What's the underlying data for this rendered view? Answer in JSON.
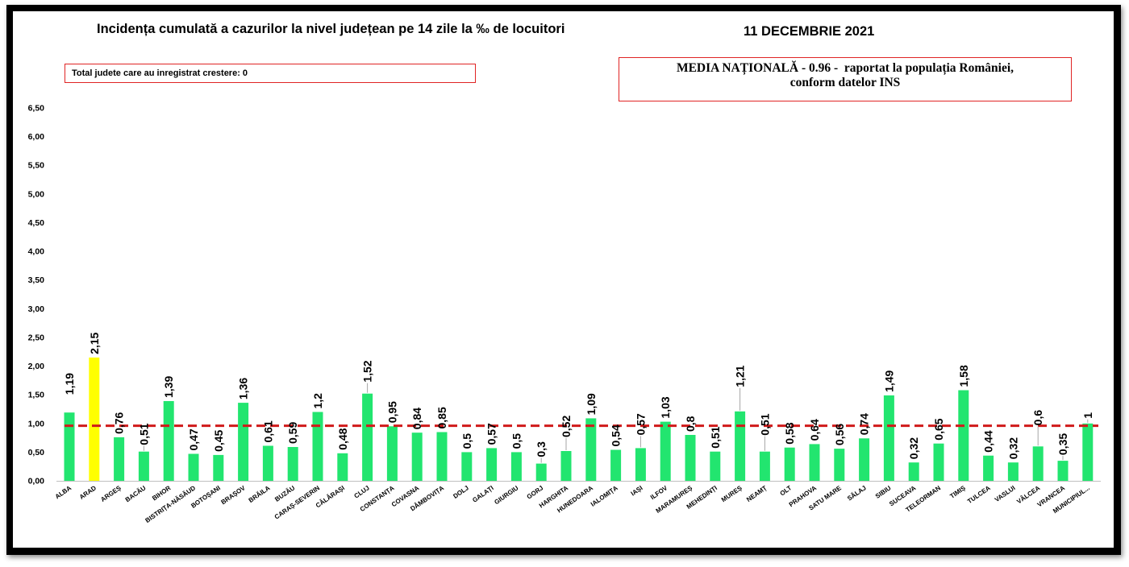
{
  "header": {
    "date": "11 DECEMBRIE 2021"
  },
  "info": {
    "increase_counter": "Total judete care au inregistrat crestere: 0",
    "national_average": [
      "MEDIA NAȚIONALĂ - 0.96 -  raportat la populația României,",
      "conform datelor INS"
    ]
  },
  "theme": {
    "frame_color": "#000000",
    "box_border_color": "#E02424",
    "axis_color": "#BFBFBF",
    "leader_color": "#A6A6A6"
  },
  "chart_data": {
    "type": "bar",
    "title": "Incidența cumulată a cazurilor la nivel județean pe 14 zile la ‰ de locuitori",
    "categories": [
      "ALBA",
      "ARAD",
      "ARGEȘ",
      "BACĂU",
      "BIHOR",
      "BISTRIȚA-NĂSĂUD",
      "BOTOȘANI",
      "BRAȘOV",
      "BRĂILA",
      "BUZĂU",
      "CARAȘ-SEVERIN",
      "CĂLĂRAȘI",
      "CLUJ",
      "CONSTANȚA",
      "COVASNA",
      "DÂMBOVIȚA",
      "DOLJ",
      "GALAȚI",
      "GIURGIU",
      "GORJ",
      "HARGHITA",
      "HUNEDOARA",
      "IALOMIȚA",
      "IAȘI",
      "ILFOV",
      "MARAMUREȘ",
      "MEHEDINȚI",
      "MUREȘ",
      "NEAMȚ",
      "OLT",
      "PRAHOVA",
      "SATU MARE",
      "SĂLAJ",
      "SIBIU",
      "SUCEAVA",
      "TELEORMAN",
      "TIMIȘ",
      "TULCEA",
      "VASLUI",
      "VÂLCEA",
      "VRANCEA",
      "MUNICIPIUL..."
    ],
    "values": [
      1.19,
      2.15,
      0.76,
      0.51,
      1.39,
      0.47,
      0.45,
      1.36,
      0.61,
      0.59,
      1.2,
      0.48,
      1.52,
      0.95,
      0.84,
      0.85,
      0.5,
      0.57,
      0.5,
      0.3,
      0.52,
      1.09,
      0.54,
      0.57,
      1.03,
      0.8,
      0.51,
      1.21,
      0.51,
      0.58,
      0.64,
      0.56,
      0.74,
      1.49,
      0.32,
      0.65,
      1.58,
      0.44,
      0.32,
      0.6,
      0.35,
      1
    ],
    "data_labels": [
      "1,19",
      "2,15",
      "0,76",
      "0,51",
      "1,39",
      "0,47",
      "0,45",
      "1,36",
      "0,61",
      "0,59",
      "1,2",
      "0,48",
      "1,52",
      "0,95",
      "0,84",
      "0,85",
      "0,5",
      "0,57",
      "0,5",
      "0,3",
      "0,52",
      "1,09",
      "0,54",
      "0,57",
      "1,03",
      "0,8",
      "0,51",
      "1,21",
      "0,51",
      "0,58",
      "0,64",
      "0,56",
      "0,74",
      "1,49",
      "0,32",
      "0,65",
      "1,58",
      "0,44",
      "0,32",
      "0,6",
      "0,35",
      "1"
    ],
    "yticks": [
      "0,00",
      "0,50",
      "1,00",
      "1,50",
      "2,00",
      "2,50",
      "3,00",
      "3,50",
      "4,00",
      "4,50",
      "5,00",
      "5,50",
      "6,00",
      "6,50"
    ],
    "ylim": [
      0,
      6.5
    ],
    "grid": false,
    "legend": false,
    "bar_color": "#22E56F",
    "highlight": {
      "category": "ARAD",
      "color": "#FFFF00"
    },
    "reference_line": {
      "value": 0.96,
      "color": "#D01A1A",
      "dashed": true
    }
  }
}
